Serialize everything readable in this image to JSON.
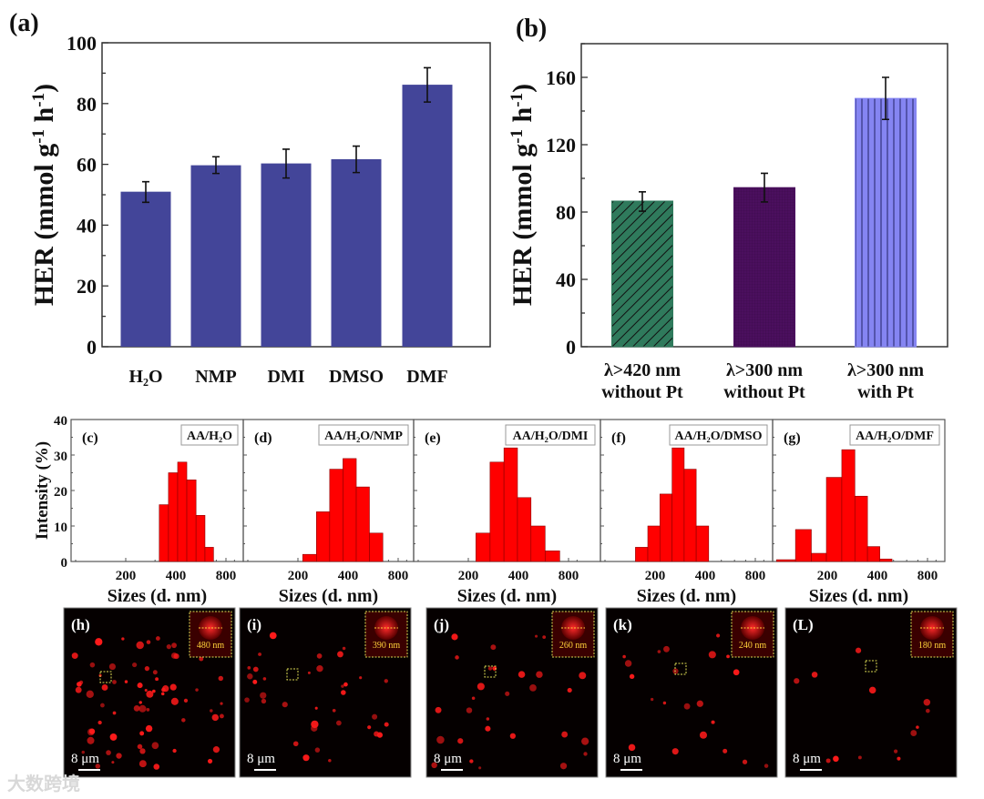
{
  "chart_data": [
    {
      "panel": "(a)",
      "type": "bar",
      "ylabel": {
        "main": "HER (mmol g",
        "sup1": "-1",
        "mid": " h",
        "sup2": "-1",
        "end": ")"
      },
      "categories": [
        "H₂O",
        "NMP",
        "DMI",
        "DMSO",
        "DMF"
      ],
      "values": [
        51,
        59.7,
        60.3,
        61.7,
        86.2
      ],
      "errors": [
        [
          47.5,
          54.3
        ],
        [
          57,
          62.5
        ],
        [
          55.5,
          65
        ],
        [
          57.3,
          66
        ],
        [
          80.5,
          91.8
        ]
      ],
      "ylim": [
        0,
        100
      ],
      "yticks": [
        "0",
        "20",
        "40",
        "60",
        "80",
        "100"
      ],
      "color": "#434599"
    },
    {
      "panel": "(b)",
      "type": "bar",
      "ylabel": {
        "main": "HER (mmol g",
        "sup1": "-1",
        "mid": " h",
        "sup2": "-1",
        "end": ")"
      },
      "categories": [
        [
          "λ>420 nm",
          "without Pt"
        ],
        [
          "λ>300 nm",
          "without Pt"
        ],
        [
          "λ>300 nm",
          "with Pt"
        ]
      ],
      "values": [
        86.5,
        94.5,
        147.5
      ],
      "errors": [
        [
          80.5,
          92
        ],
        [
          86,
          103
        ],
        [
          135,
          160
        ]
      ],
      "ylim": [
        0,
        180
      ],
      "yticks": [
        "0",
        "40",
        "80",
        "120",
        "160"
      ],
      "colors": [
        "#2f7a5c",
        "#4b0f5e",
        "#8585f2"
      ]
    },
    {
      "type": "bar",
      "subtype": "histogram",
      "ylabel": "Intensity (%)",
      "xlabel": "Sizes (d. nm)",
      "xscale": "log",
      "xticks": [
        "200",
        "400",
        "800"
      ],
      "yticks": [
        "0",
        "10",
        "20",
        "30",
        "40"
      ],
      "ylim": [
        0,
        40
      ],
      "color": "#ff0000",
      "panels": [
        {
          "panel": "(c)",
          "tag": "AA/H₂O",
          "sizes": [
            339,
            385,
            437,
            496,
            564,
            635
          ],
          "values": [
            16,
            25,
            28,
            23,
            13,
            4
          ]
        },
        {
          "panel": "(d)",
          "tag": "AA/H₂O/NMP",
          "sizes": [
            235,
            284,
            339,
            410,
            490,
            590
          ],
          "values": [
            2,
            14,
            26,
            29,
            21,
            8
          ]
        },
        {
          "panel": "(e)",
          "tag": "AA/H₂O/DMI",
          "sizes": [
            245,
            298,
            360,
            433,
            523,
            640
          ],
          "values": [
            8,
            28,
            32,
            18,
            10,
            3
          ]
        },
        {
          "panel": "(f)",
          "tag": "AA/H₂O/DMSO",
          "sizes": [
            166,
            197,
            232,
            276,
            324,
            385
          ],
          "values": [
            4,
            10,
            19,
            32,
            26,
            10
          ]
        },
        {
          "panel": "(g)",
          "tag": "AA/H₂O/DMF",
          "sizes": [
            113,
            147,
            175,
            223,
            268,
            320,
            380,
            450
          ],
          "values": [
            0.5,
            9,
            2.3,
            23.7,
            31.5,
            18.4,
            4.2,
            0.7
          ]
        }
      ]
    }
  ],
  "images": [
    {
      "panel": "(h)",
      "inset": "480 nm",
      "scale": "8 μm"
    },
    {
      "panel": "(i)",
      "inset": "390 nm",
      "scale": "8 μm"
    },
    {
      "panel": "(j)",
      "inset": "260 nm",
      "scale": "8 μm"
    },
    {
      "panel": "(k)",
      "inset": "240 nm",
      "scale": "8 μm"
    },
    {
      "panel": "(L)",
      "inset": "180 nm",
      "scale": "8 μm"
    }
  ],
  "watermark": "大数跨境"
}
